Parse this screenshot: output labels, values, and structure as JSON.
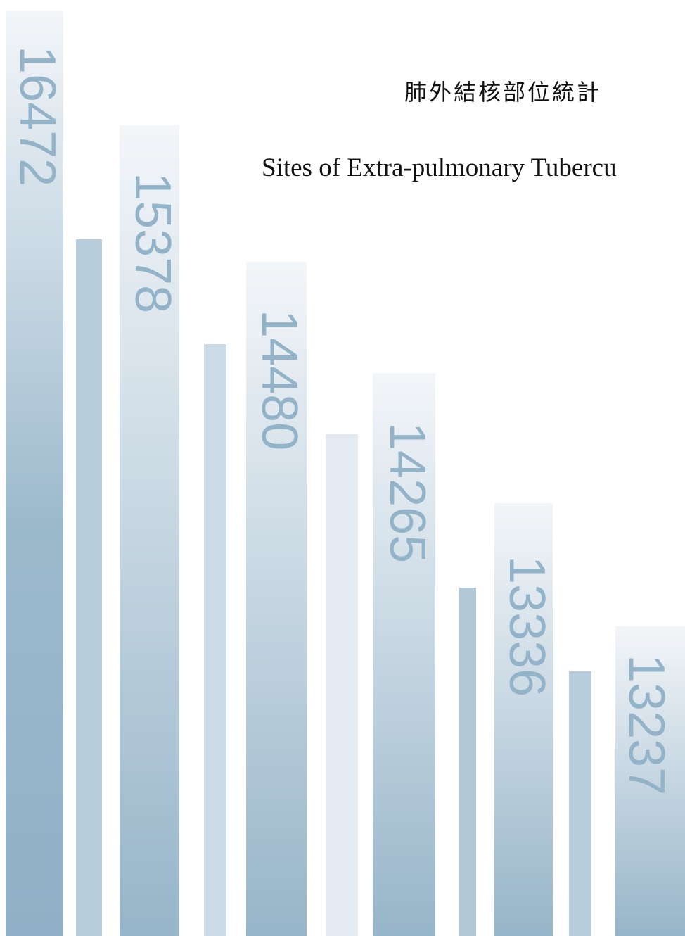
{
  "header": {
    "title_zh": "肺外結核部位統計",
    "title_en": "Sites of Extra-pulmonary Tubercu"
  },
  "numbers": [
    16472,
    15378,
    14480,
    14265,
    13336,
    13237
  ]
}
